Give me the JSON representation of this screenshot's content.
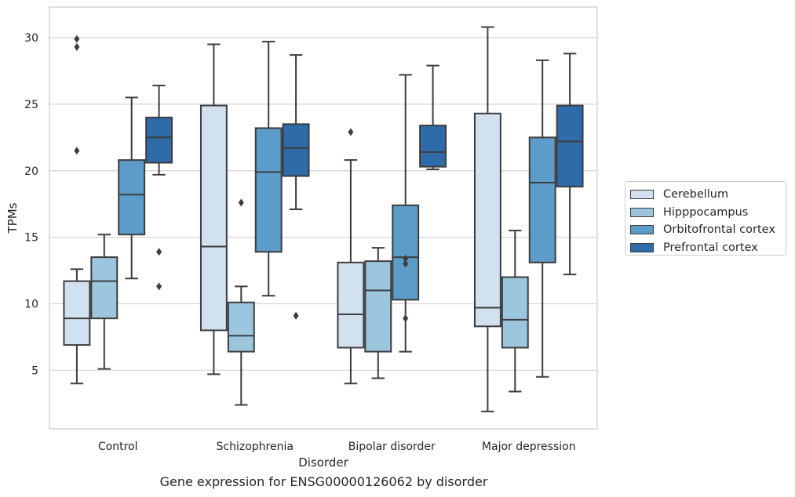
{
  "chart_data": {
    "type": "box",
    "caption": "Gene expression for ENSG00000126062 by disorder",
    "xlabel": "Disorder",
    "ylabel": "TPMs",
    "ylim": [
      0.6,
      32.3
    ],
    "yticks": [
      5,
      10,
      15,
      20,
      25,
      30
    ],
    "grid": "horizontal",
    "legend_position": "right",
    "categories": [
      "Control",
      "Schizophrenia",
      "Bipolar disorder",
      "Major depression"
    ],
    "series": [
      {
        "name": "Cerebellum",
        "color": "#d1e1f0",
        "boxes": [
          {
            "whisker_low": 4.0,
            "q1": 6.9,
            "median": 8.9,
            "q3": 11.7,
            "whisker_high": 12.6,
            "outliers": [
              21.5,
              29.3,
              29.9
            ]
          },
          {
            "whisker_low": 4.7,
            "q1": 8.0,
            "median": 14.3,
            "q3": 24.9,
            "whisker_high": 29.5,
            "outliers": []
          },
          {
            "whisker_low": 4.0,
            "q1": 6.7,
            "median": 9.2,
            "q3": 13.1,
            "whisker_high": 20.8,
            "outliers": [
              22.9
            ]
          },
          {
            "whisker_low": 1.9,
            "q1": 8.3,
            "median": 9.7,
            "q3": 24.3,
            "whisker_high": 30.8,
            "outliers": []
          }
        ]
      },
      {
        "name": "Hipppocampus",
        "color": "#9cc5de",
        "boxes": [
          {
            "whisker_low": 5.1,
            "q1": 8.9,
            "median": 11.7,
            "q3": 13.5,
            "whisker_high": 15.2,
            "outliers": []
          },
          {
            "whisker_low": 2.4,
            "q1": 6.4,
            "median": 7.6,
            "q3": 10.1,
            "whisker_high": 11.3,
            "outliers": [
              17.6
            ]
          },
          {
            "whisker_low": 4.4,
            "q1": 6.4,
            "median": 11.0,
            "q3": 13.2,
            "whisker_high": 14.2,
            "outliers": []
          },
          {
            "whisker_low": 3.4,
            "q1": 6.7,
            "median": 8.8,
            "q3": 12.0,
            "whisker_high": 15.5,
            "outliers": []
          }
        ]
      },
      {
        "name": "Orbitofrontal cortex",
        "color": "#5b9cc9",
        "boxes": [
          {
            "whisker_low": 11.9,
            "q1": 15.2,
            "median": 18.2,
            "q3": 20.8,
            "whisker_high": 25.5,
            "outliers": []
          },
          {
            "whisker_low": 10.6,
            "q1": 13.9,
            "median": 19.9,
            "q3": 23.2,
            "whisker_high": 29.7,
            "outliers": []
          },
          {
            "whisker_low": 6.4,
            "q1": 10.3,
            "median": 13.5,
            "q3": 17.4,
            "whisker_high": 27.2,
            "outliers": [
              8.9,
              13.0,
              13.4
            ]
          },
          {
            "whisker_low": 4.5,
            "q1": 13.1,
            "median": 19.1,
            "q3": 22.5,
            "whisker_high": 28.3,
            "outliers": []
          }
        ]
      },
      {
        "name": "Prefrontal cortex",
        "color": "#2e6ba8",
        "boxes": [
          {
            "whisker_low": 19.7,
            "q1": 20.6,
            "median": 22.5,
            "q3": 24.0,
            "whisker_high": 26.4,
            "outliers": [
              11.3,
              13.9
            ]
          },
          {
            "whisker_low": 17.1,
            "q1": 19.6,
            "median": 21.7,
            "q3": 23.5,
            "whisker_high": 28.7,
            "outliers": [
              9.1
            ]
          },
          {
            "whisker_low": 20.1,
            "q1": 20.3,
            "median": 21.4,
            "q3": 23.4,
            "whisker_high": 27.9,
            "outliers": []
          },
          {
            "whisker_low": 12.2,
            "q1": 18.8,
            "median": 22.2,
            "q3": 24.9,
            "whisker_high": 28.8,
            "outliers": []
          }
        ]
      }
    ]
  }
}
